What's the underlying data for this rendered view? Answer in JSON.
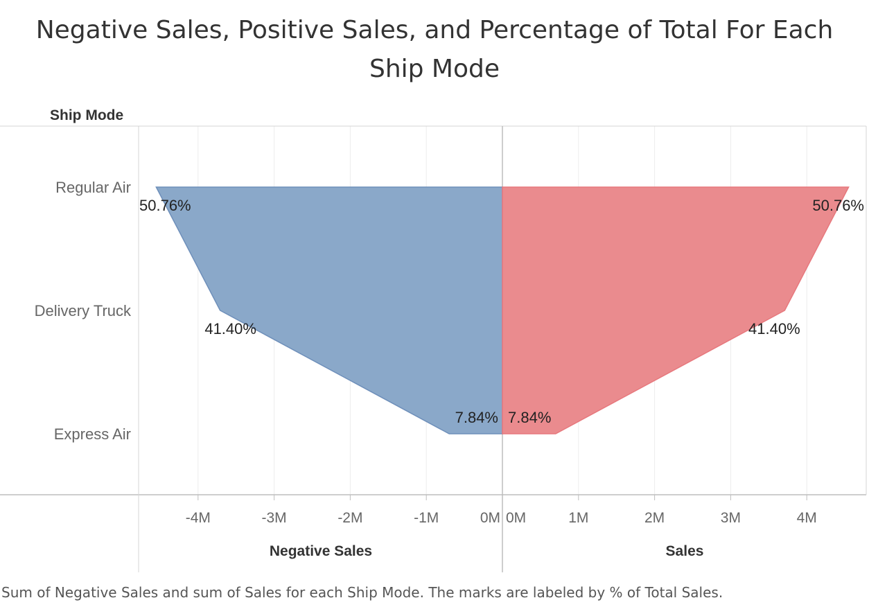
{
  "title_lines": [
    "Negative Sales, Positive Sales, and Percentage of Total For Each",
    "Ship Mode"
  ],
  "caption": "Sum of Negative Sales and sum of Sales for each Ship Mode.  The marks are labeled by % of Total Sales.",
  "row_header": "Ship Mode",
  "chart_data": {
    "type": "area",
    "orientation": "horizontal-mirrored",
    "categories": [
      "Regular Air",
      "Delivery Truck",
      "Express Air"
    ],
    "panels": [
      {
        "name": "Negative Sales",
        "xlabel": "Negative Sales",
        "xlim": [
          -4.75,
          0
        ],
        "ticks": [
          -4,
          -3,
          -2,
          -1,
          0
        ],
        "tick_labels": [
          "-4M",
          "-3M",
          "-2M",
          "-1M",
          "0M"
        ],
        "values": [
          -4.55,
          -3.71,
          -0.7
        ],
        "data_labels": [
          "50.76%",
          "41.40%",
          "7.84%"
        ],
        "color": "#8aa8c9",
        "stroke": "#6e8fba"
      },
      {
        "name": "Sales",
        "xlabel": "Sales",
        "xlim": [
          0,
          4.75
        ],
        "ticks": [
          0,
          1,
          2,
          3,
          4
        ],
        "tick_labels": [
          "0M",
          "1M",
          "2M",
          "3M",
          "4M"
        ],
        "values": [
          4.55,
          3.71,
          0.7
        ],
        "data_labels": [
          "50.76%",
          "41.40%",
          "7.84%"
        ],
        "color": "#ea8b8e",
        "stroke": "#e7787d"
      }
    ],
    "grid": true,
    "legend": "none"
  }
}
